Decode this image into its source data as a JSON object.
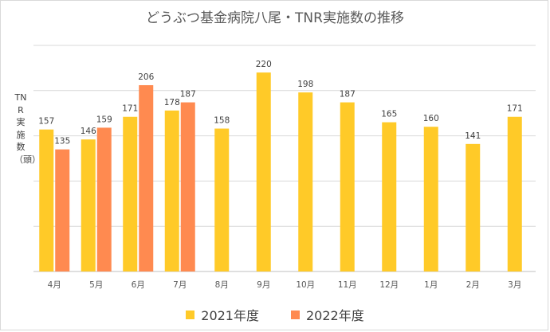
{
  "chart_data": {
    "type": "bar",
    "title": "どうぶつ基金病院八尾・TNR実施数の推移",
    "xlabel": "",
    "ylabel": "TNR実施数（頭）",
    "categories": [
      "4月",
      "5月",
      "6月",
      "7月",
      "8月",
      "9月",
      "10月",
      "11月",
      "12月",
      "1月",
      "2月",
      "3月"
    ],
    "ylim": [
      0,
      250
    ],
    "grid": true,
    "legend_position": "bottom",
    "series": [
      {
        "name": "2021年度",
        "color": "#ffca28",
        "values": [
          157,
          146,
          171,
          178,
          158,
          220,
          198,
          187,
          165,
          160,
          141,
          171
        ]
      },
      {
        "name": "2022年度",
        "color": "#ff8a50",
        "values": [
          135,
          159,
          206,
          187,
          null,
          null,
          null,
          null,
          null,
          null,
          null,
          null
        ]
      }
    ]
  }
}
